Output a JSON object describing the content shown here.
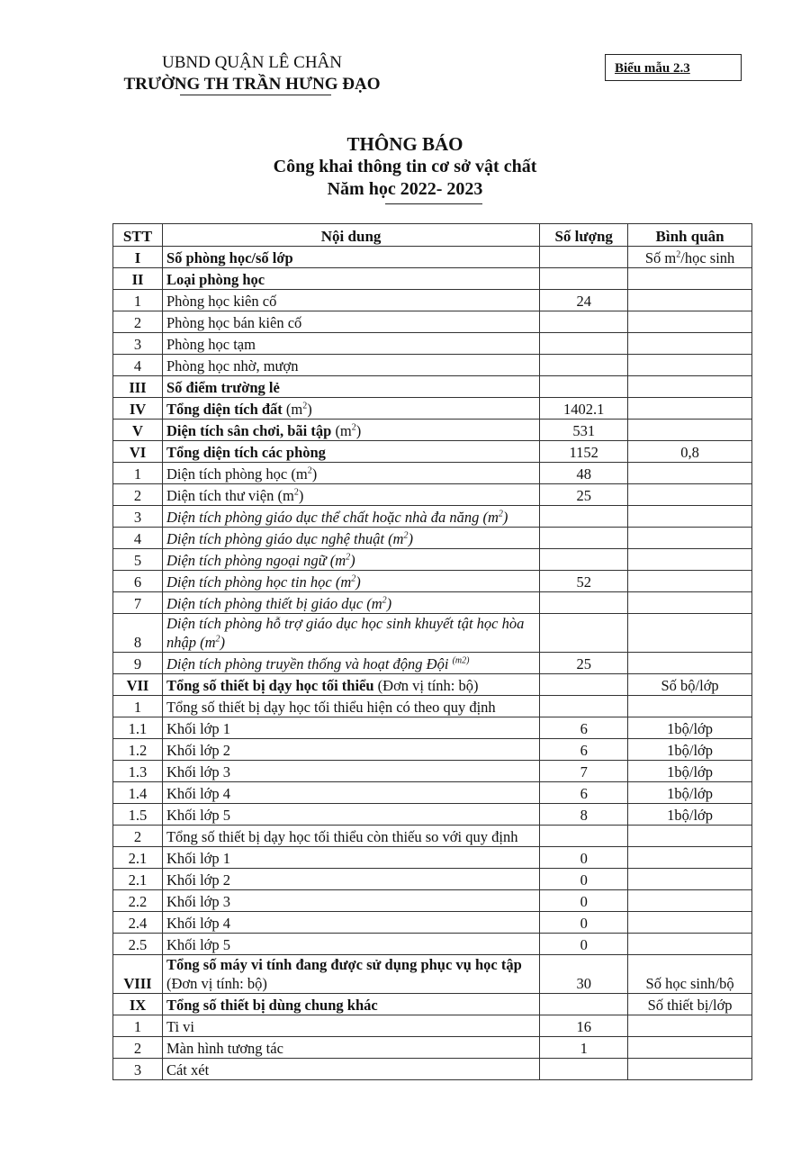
{
  "header": {
    "org_line1": "UBND QUẬN LÊ CHÂN",
    "org_line2": "TRƯỜNG TH TRẦN HƯNG ĐẠO",
    "form_label": "Biểu mẫu 2.3"
  },
  "title": {
    "line1": "THÔNG BÁO",
    "line2": "Công khai thông tin cơ sở vật chất",
    "line3": "Năm học 2022- 2023"
  },
  "table": {
    "columns": [
      "STT",
      "Nội dung",
      "Số lượng",
      "Bình quân"
    ],
    "rows": [
      {
        "stt": "I",
        "main": "Số phòng học/số lớp",
        "qty": "",
        "avg": "Số m",
        "avg_sup": "2",
        "avg_post": "/học sinh",
        "style": "b"
      },
      {
        "stt": "II",
        "main": "Loại phòng học",
        "qty": "",
        "avg": "",
        "style": "b"
      },
      {
        "stt": "1",
        "main": "Phòng học kiên cố",
        "qty": "24",
        "avg": ""
      },
      {
        "stt": "2",
        "main": "Phòng học bán kiên cố",
        "qty": "",
        "avg": ""
      },
      {
        "stt": "3",
        "main": "Phòng học tạm",
        "qty": "",
        "avg": ""
      },
      {
        "stt": "4",
        "main": "Phòng học nhờ, mượn",
        "qty": "",
        "avg": ""
      },
      {
        "stt": "III",
        "main": "Số điểm trường lẻ",
        "qty": "",
        "avg": "",
        "style": "b"
      },
      {
        "stt": "IV",
        "main": "Tổng diện tích đất ",
        "unit": "(m",
        "sup": "2",
        "unit_end": ")",
        "qty": "1402.1",
        "avg": "",
        "style": "b"
      },
      {
        "stt": "V",
        "main": "Diện tích sân chơi, bãi tập ",
        "unit": "(m",
        "sup": "2",
        "unit_end": ")",
        "qty": "531",
        "avg": "",
        "style": "b"
      },
      {
        "stt": "VI",
        "main": "Tổng diện tích các phòng",
        "qty": "1152",
        "avg": "0,8",
        "style": "b"
      },
      {
        "stt": "1",
        "main": "Diện tích phòng học ",
        "unit": "(m",
        "sup": "2",
        "unit_end": ")",
        "qty": "48",
        "avg": ""
      },
      {
        "stt": "2",
        "main": "Diện tích thư viện ",
        "unit": "(m",
        "sup": "2",
        "unit_end": ")",
        "qty": "25",
        "avg": ""
      },
      {
        "stt": "3",
        "main": "Diện tích phòng giáo dục thể chất hoặc nhà đa năng ",
        "unit": "(m",
        "sup": "2",
        "unit_end": ")",
        "qty": "",
        "avg": "",
        "style": "i"
      },
      {
        "stt": "4",
        "main": "Diện tích phòng giáo dục nghệ thuật ",
        "unit": "(m",
        "sup": "2",
        "unit_end": ")",
        "qty": "",
        "avg": "",
        "style": "i"
      },
      {
        "stt": "5",
        "main": "Diện tích phòng ngoại ngữ ",
        "unit": "(m",
        "sup": "2",
        "unit_end": ")",
        "qty": "",
        "avg": "",
        "style": "i"
      },
      {
        "stt": "6",
        "main": "Diện tích phòng học tin học ",
        "unit": "(m",
        "sup": "2",
        "unit_end": ")",
        "qty": "52",
        "avg": "",
        "style": "i"
      },
      {
        "stt": "7",
        "main": "Diện tích phòng thiết bị giáo dục ",
        "unit": "(m",
        "sup": "2",
        "unit_end": ")",
        "qty": "",
        "avg": "",
        "style": "i"
      },
      {
        "stt": "8",
        "main": "Diện tích phòng hỗ trợ giáo dục học sinh khuyết tật học hòa nhập ",
        "unit": "(m",
        "sup": "2",
        "unit_end": ")",
        "qty": "",
        "avg": "",
        "style": "i",
        "tall": true
      },
      {
        "stt": "9",
        "main": "Diện tích phòng truyền thống và hoạt động Đội ",
        "sup": "(m2)",
        "qty": "25",
        "avg": "",
        "style": "i"
      },
      {
        "stt": "VII",
        "main": "Tổng số thiết bị dạy học tối thiểu ",
        "note": "(Đơn vị tính: bộ)",
        "qty": "",
        "avg": "Số bộ/lớp",
        "style": "b"
      },
      {
        "stt": "1",
        "main": "Tổng số thiết bị dạy học tối thiểu hiện có theo quy định",
        "qty": "",
        "avg": ""
      },
      {
        "stt": "1.1",
        "main": "Khối lớp 1",
        "qty": "6",
        "avg": "1bộ/lớp"
      },
      {
        "stt": "1.2",
        "main": "Khối lớp 2",
        "qty": "6",
        "avg": "1bộ/lớp"
      },
      {
        "stt": "1.3",
        "main": "Khối lớp 3",
        "qty": "7",
        "avg": "1bộ/lớp"
      },
      {
        "stt": "1.4",
        "main": "Khối lớp 4",
        "qty": "6",
        "avg": "1bộ/lớp"
      },
      {
        "stt": "1.5",
        "main": "Khối lớp 5",
        "qty": "8",
        "avg": "1bộ/lớp"
      },
      {
        "stt": "2",
        "main": "Tổng số thiết bị dạy học tối thiểu còn thiếu so với quy định",
        "qty": "",
        "avg": ""
      },
      {
        "stt": "2.1",
        "main": "Khối lớp 1",
        "qty": "0",
        "avg": ""
      },
      {
        "stt": "2.1",
        "main": "Khối lớp 2",
        "qty": "0",
        "avg": ""
      },
      {
        "stt": "2.2",
        "main": "Khối lớp 3",
        "qty": "0",
        "avg": ""
      },
      {
        "stt": "2.4",
        "main": "Khối lớp 4",
        "qty": "0",
        "avg": ""
      },
      {
        "stt": "2.5",
        "main": "Khối lớp 5",
        "qty": "0",
        "avg": ""
      },
      {
        "stt": "VIII",
        "main": "Tổng số máy vi tính đang được sử dụng phục vụ học tập ",
        "note": "(Đơn vị tính: bộ)",
        "qty": "30",
        "avg": "Số học sinh/bộ",
        "style": "b",
        "tall": true
      },
      {
        "stt": "IX",
        "main": "Tổng số thiết bị dùng chung khác",
        "qty": "",
        "avg": "Số thiết bị/lớp",
        "style": "b"
      },
      {
        "stt": "1",
        "main": "Ti vi",
        "qty": "16",
        "avg": ""
      },
      {
        "stt": "2",
        "main": "Màn hình tương tác",
        "qty": "1",
        "avg": ""
      },
      {
        "stt": "3",
        "main": "Cát xét",
        "qty": "",
        "avg": ""
      }
    ]
  }
}
